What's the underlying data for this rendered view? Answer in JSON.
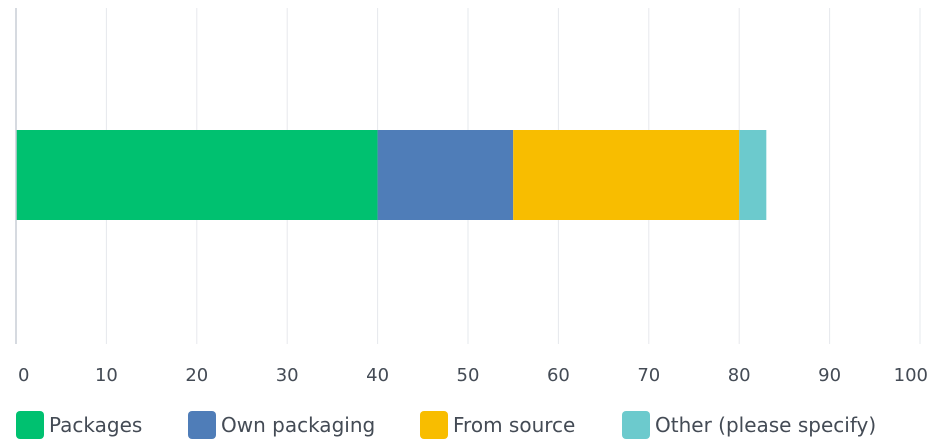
{
  "chart_data": {
    "type": "bar",
    "orientation": "horizontal",
    "stacked": true,
    "categories": [
      ""
    ],
    "series": [
      {
        "name": "Packages",
        "values": [
          40
        ],
        "color": "#00c170"
      },
      {
        "name": "Own packaging",
        "values": [
          15
        ],
        "color": "#4f7db8"
      },
      {
        "name": "From source",
        "values": [
          25
        ],
        "color": "#f8bd00"
      },
      {
        "name": "Other (please specify)",
        "values": [
          3
        ],
        "color": "#6ccacd"
      }
    ],
    "title": "",
    "xlabel": "",
    "ylabel": "",
    "xlim": [
      0,
      100
    ],
    "x_ticks": [
      "0",
      "10",
      "20",
      "30",
      "40",
      "50",
      "60",
      "70",
      "80",
      "90",
      "100"
    ],
    "grid": true,
    "legend": "bottom-left"
  }
}
